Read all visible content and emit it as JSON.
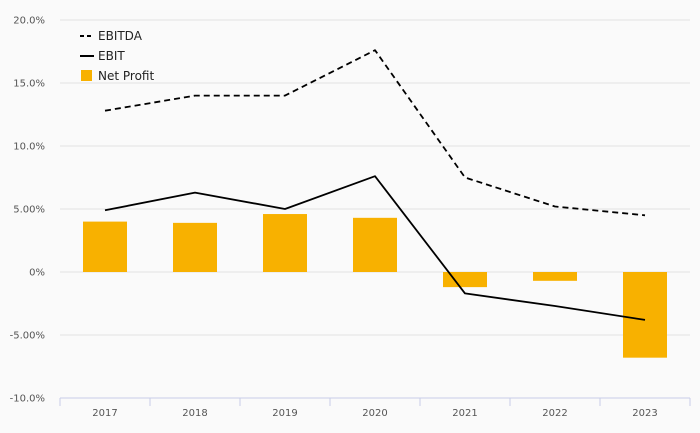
{
  "chart_data": {
    "type": "bar",
    "categories": [
      "2017",
      "2018",
      "2019",
      "2020",
      "2021",
      "2022",
      "2023"
    ],
    "series": [
      {
        "name": "EBITDA",
        "kind": "line",
        "style": "dashed",
        "color": "#000000",
        "values": [
          12.8,
          14.0,
          14.0,
          17.6,
          7.5,
          5.2,
          4.5
        ]
      },
      {
        "name": "EBIT",
        "kind": "line",
        "style": "solid",
        "color": "#000000",
        "values": [
          4.9,
          6.3,
          5.0,
          7.6,
          -1.7,
          -2.7,
          -3.8
        ]
      },
      {
        "name": "Net Profit",
        "kind": "bar",
        "color": "#f8b100",
        "values": [
          4.0,
          3.9,
          4.6,
          4.3,
          -1.2,
          -0.7,
          -6.8
        ]
      }
    ],
    "yticks": [
      {
        "value": 20,
        "label": "20.0%"
      },
      {
        "value": 15,
        "label": "15.0%"
      },
      {
        "value": 10,
        "label": "10.0%"
      },
      {
        "value": 5,
        "label": "5.00%"
      },
      {
        "value": 0,
        "label": "0%"
      },
      {
        "value": -5,
        "label": "-5.00%"
      },
      {
        "value": -10,
        "label": "-10.0%"
      }
    ],
    "ylim": [
      -10,
      20
    ],
    "grid": true,
    "legend_position": "top-left"
  }
}
